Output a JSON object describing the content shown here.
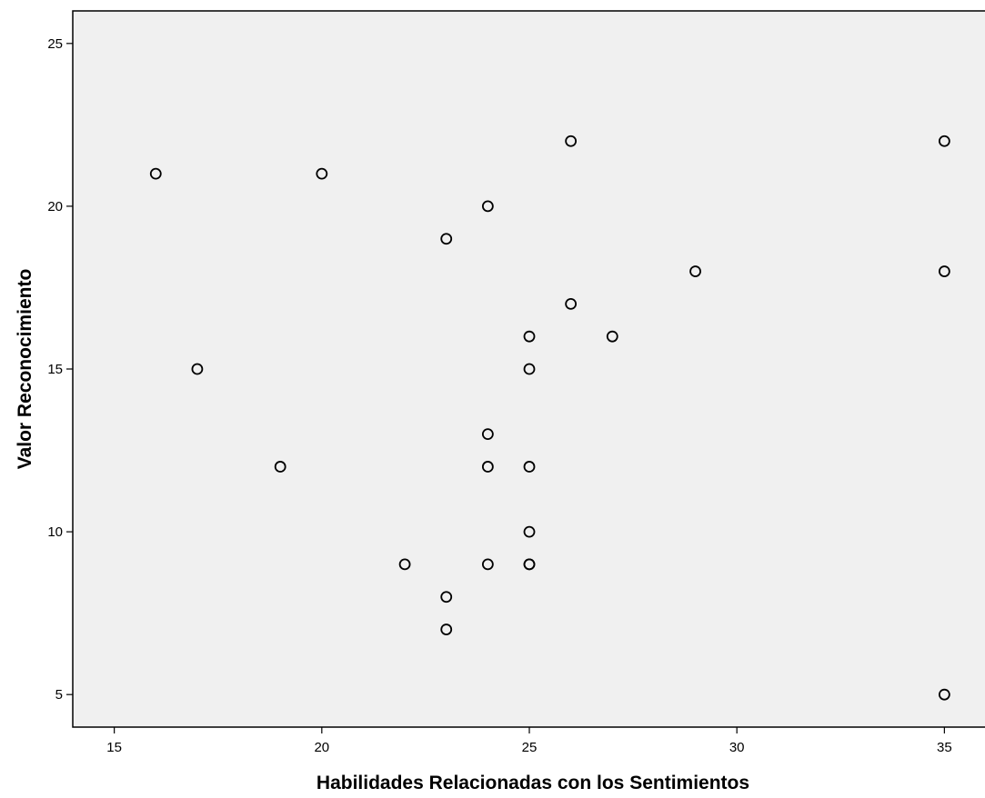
{
  "chart_data": {
    "type": "scatter",
    "title": "",
    "xlabel": "Habilidades Relacionadas con los Sentimientos",
    "ylabel": "Valor Reconocimiento",
    "xlim": [
      14,
      36
    ],
    "ylim": [
      4,
      26
    ],
    "xticks": [
      "15",
      "20",
      "25",
      "30",
      "35"
    ],
    "yticks": [
      "5",
      "10",
      "15",
      "20",
      "25"
    ],
    "grid": false,
    "legend": "none",
    "colors": {
      "plot_background": "#f0f0f0",
      "marker_stroke": "#000000"
    },
    "marker": "open-circle",
    "points": [
      {
        "x": 16,
        "y": 21
      },
      {
        "x": 17,
        "y": 15
      },
      {
        "x": 19,
        "y": 12
      },
      {
        "x": 20,
        "y": 21
      },
      {
        "x": 22,
        "y": 9
      },
      {
        "x": 23,
        "y": 19
      },
      {
        "x": 23,
        "y": 8
      },
      {
        "x": 23,
        "y": 7
      },
      {
        "x": 24,
        "y": 20
      },
      {
        "x": 24,
        "y": 13
      },
      {
        "x": 24,
        "y": 12
      },
      {
        "x": 24,
        "y": 9
      },
      {
        "x": 25,
        "y": 16
      },
      {
        "x": 25,
        "y": 15
      },
      {
        "x": 25,
        "y": 12
      },
      {
        "x": 25,
        "y": 10
      },
      {
        "x": 25,
        "y": 9
      },
      {
        "x": 25,
        "y": 9
      },
      {
        "x": 26,
        "y": 22
      },
      {
        "x": 26,
        "y": 17
      },
      {
        "x": 27,
        "y": 16
      },
      {
        "x": 29,
        "y": 18
      },
      {
        "x": 35,
        "y": 22
      },
      {
        "x": 35,
        "y": 18
      },
      {
        "x": 35,
        "y": 5
      }
    ]
  }
}
